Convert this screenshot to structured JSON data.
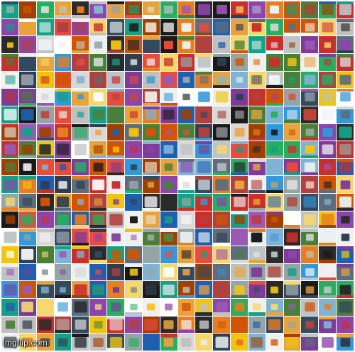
{
  "mosaic": {
    "rows": 20,
    "cols": 20,
    "palette": [
      "#c9302c",
      "#1f5fb0",
      "#f0f0f0",
      "#2a2a2a",
      "#e8a33d",
      "#7fb3d5",
      "#d8d8d8",
      "#4a7f3a",
      "#8e44ad",
      "#f5d76e",
      "#b0413e",
      "#5d6d7e",
      "#ffffff",
      "#e67e22",
      "#16a085",
      "#34495e",
      "#c0c0c0",
      "#d35400",
      "#ecf0f1",
      "#27ae60",
      "#2c3e50",
      "#f1c40f",
      "#e74c3c",
      "#95a5a6",
      "#3498db",
      "#9b59b6",
      "#a04000",
      "#1a1a1a",
      "#bdc3c7",
      "#7d3c98"
    ]
  },
  "watermark": {
    "text": "imgflip.com"
  }
}
